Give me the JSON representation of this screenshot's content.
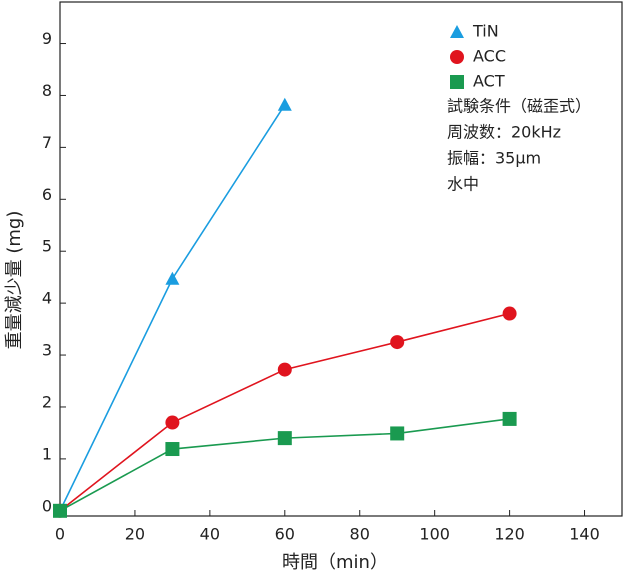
{
  "chart_data": {
    "type": "line",
    "x_label": "時間（min）",
    "y_label": "重量減少量 (mg)",
    "xlim": [
      0,
      150
    ],
    "xticks": [
      0,
      20,
      40,
      60,
      80,
      100,
      120,
      140
    ],
    "ylim": [
      -0.1,
      9.8
    ],
    "yticks": [
      0,
      1,
      2,
      3,
      4,
      5,
      6,
      7,
      8,
      9
    ],
    "series": [
      {
        "name": "TiN",
        "color": "#1a9de0",
        "marker": "triangle",
        "x": [
          0,
          30,
          60
        ],
        "values": [
          0,
          4.47,
          7.82
        ]
      },
      {
        "name": "ACC",
        "color": "#e0141e",
        "marker": "circle",
        "x": [
          0,
          30,
          60,
          90,
          120
        ],
        "values": [
          0,
          1.7,
          2.72,
          3.25,
          3.8
        ]
      },
      {
        "name": "ACT",
        "color": "#1a9a50",
        "marker": "square",
        "x": [
          0,
          30,
          60,
          90,
          120
        ],
        "values": [
          0,
          1.19,
          1.4,
          1.49,
          1.77
        ]
      }
    ],
    "annotations": [
      "試験条件（磁歪式）",
      "周波数：20kHz",
      "振幅：35μm",
      "水中"
    ]
  }
}
